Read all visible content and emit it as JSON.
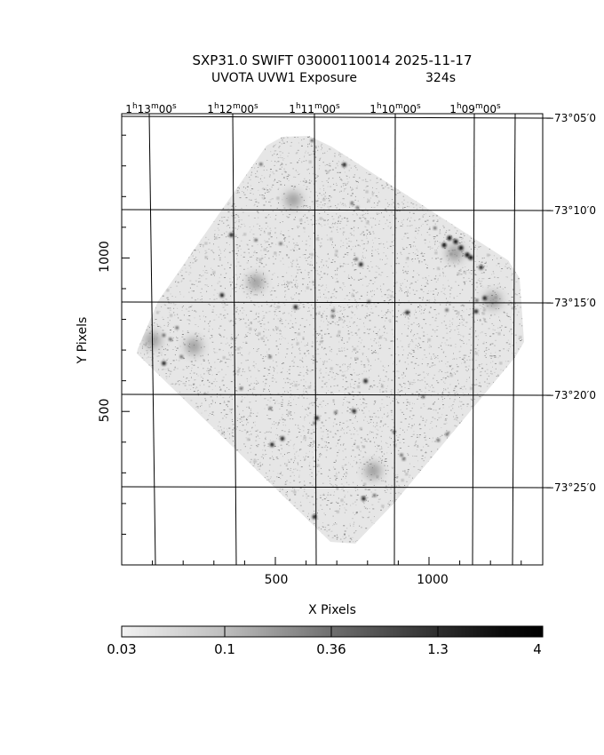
{
  "title": {
    "line1": "SXP31.0 SWIFT 03000110014 2025-11-17",
    "line2_left": "UVOTA UVW1 Exposure",
    "line2_right": "324s"
  },
  "axes": {
    "xlabel": "X Pixels",
    "ylabel": "Y Pixels",
    "x_ticks": [
      "500",
      "1000"
    ],
    "y_ticks": [
      "500",
      "1000"
    ],
    "ra_ticks": [
      {
        "h": "1",
        "m": "13",
        "s": "00"
      },
      {
        "h": "1",
        "m": "12",
        "s": "00"
      },
      {
        "h": "1",
        "m": "11",
        "s": "00"
      },
      {
        "h": "1",
        "m": "10",
        "s": "00"
      },
      {
        "h": "1",
        "m": "09",
        "s": "00"
      }
    ],
    "ra_units": {
      "h": "h",
      "m": "m",
      "s": "s"
    },
    "dec_ticks": [
      "−73°05′0",
      "−73°10′0",
      "−73°15′0",
      "−73°20′0",
      "−73°25′0"
    ],
    "x_range": [
      0,
      1370
    ],
    "y_range": [
      0,
      1470
    ],
    "x_tick_values": [
      500,
      1000
    ],
    "y_tick_values": [
      500,
      1000
    ],
    "x_minor_step": 100,
    "y_minor_step": 100
  },
  "colorbar": {
    "labels": [
      "0.03",
      "0.1",
      "0.36",
      "1.3",
      "4"
    ],
    "scale": "log",
    "cmap": "inverted-gray"
  },
  "colors": {
    "background": "#ffffff",
    "foreground": "#000000",
    "sky_noise": "#a8a8a8"
  }
}
